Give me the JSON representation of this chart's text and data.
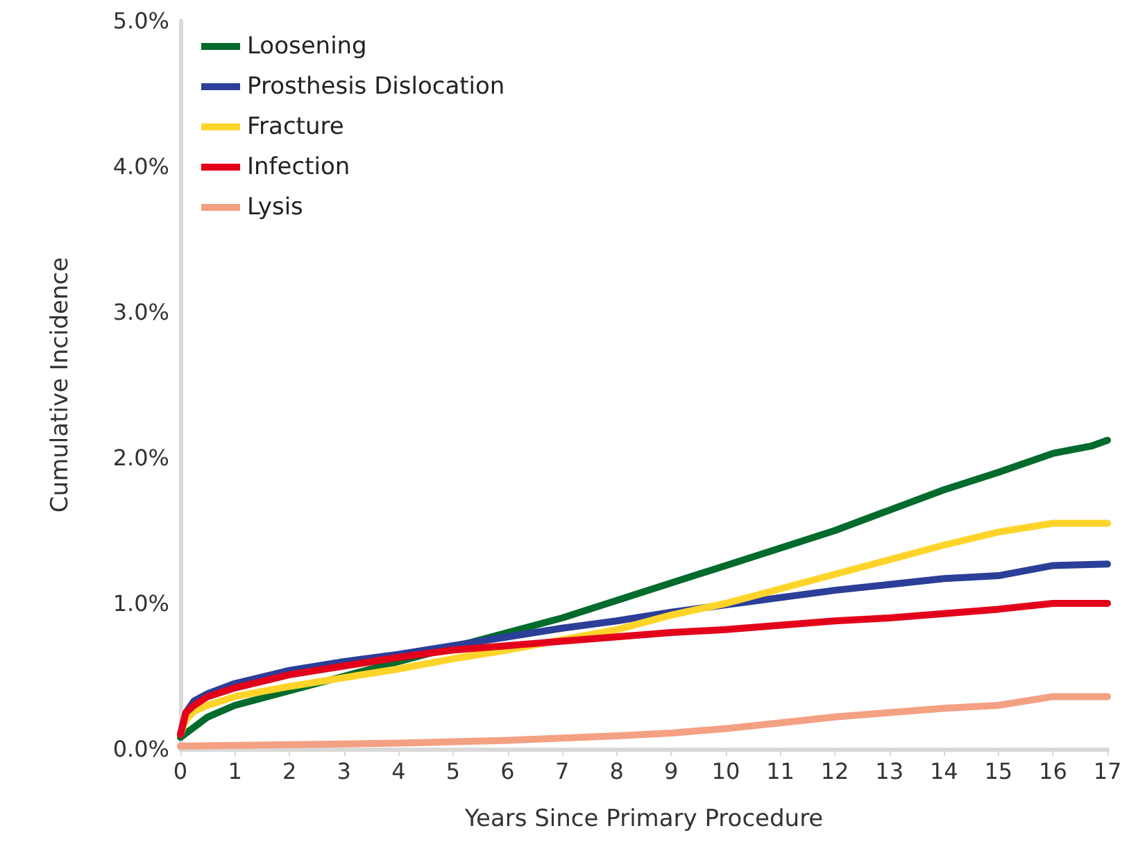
{
  "chart_data": {
    "type": "line",
    "xlabel": "Years Since Primary Procedure",
    "ylabel": "Cumulative Incidence",
    "xlim": [
      0,
      17
    ],
    "xticks": [
      0,
      1,
      2,
      3,
      4,
      5,
      6,
      7,
      8,
      9,
      10,
      11,
      12,
      13,
      14,
      15,
      16,
      17
    ],
    "ylim": [
      0,
      5
    ],
    "yticks": [
      {
        "value": 0,
        "label": "0.0%"
      },
      {
        "value": 1,
        "label": "1.0%"
      },
      {
        "value": 2,
        "label": "2.0%"
      },
      {
        "value": 3,
        "label": "3.0%"
      },
      {
        "value": 4,
        "label": "4.0%"
      },
      {
        "value": 5,
        "label": "5.0%"
      }
    ],
    "grid": false,
    "legend": "top left",
    "marker": "none",
    "line_style": "solid",
    "series": [
      {
        "name": "Loosening",
        "color": "#006b2d",
        "x": [
          0,
          0.5,
          1,
          2,
          3,
          4,
          5,
          6,
          7,
          8,
          9,
          10,
          11,
          12,
          13,
          14,
          15,
          16,
          16.7,
          17
        ],
        "values": [
          0.08,
          0.22,
          0.3,
          0.4,
          0.5,
          0.6,
          0.7,
          0.8,
          0.9,
          1.02,
          1.14,
          1.26,
          1.38,
          1.5,
          1.64,
          1.78,
          1.9,
          2.03,
          2.08,
          2.12
        ]
      },
      {
        "name": "Prosthesis Dislocation",
        "color": "#2b3e98",
        "x": [
          0,
          0.1,
          0.25,
          0.5,
          1,
          2,
          3,
          4,
          5,
          6,
          7,
          8,
          9,
          10,
          11,
          12,
          13,
          14,
          15,
          16,
          17
        ],
        "values": [
          0.1,
          0.25,
          0.33,
          0.38,
          0.45,
          0.54,
          0.6,
          0.65,
          0.71,
          0.77,
          0.83,
          0.88,
          0.94,
          0.99,
          1.04,
          1.09,
          1.13,
          1.17,
          1.19,
          1.26,
          1.27
        ]
      },
      {
        "name": "Fracture",
        "color": "#ffd42a",
        "x": [
          0,
          0.1,
          0.25,
          0.5,
          1,
          2,
          3,
          4,
          5,
          6,
          7,
          8,
          9,
          10,
          11,
          12,
          13,
          14,
          15,
          16,
          17
        ],
        "values": [
          0.1,
          0.2,
          0.26,
          0.3,
          0.36,
          0.43,
          0.49,
          0.55,
          0.62,
          0.68,
          0.75,
          0.82,
          0.92,
          1.0,
          1.1,
          1.2,
          1.3,
          1.4,
          1.49,
          1.55,
          1.55
        ]
      },
      {
        "name": "Infection",
        "color": "#e3001b",
        "x": [
          0,
          0.1,
          0.25,
          0.5,
          1,
          2,
          3,
          4,
          5,
          6,
          7,
          8,
          9,
          10,
          11,
          12,
          13,
          14,
          15,
          16,
          17
        ],
        "values": [
          0.1,
          0.25,
          0.3,
          0.36,
          0.42,
          0.51,
          0.57,
          0.63,
          0.68,
          0.71,
          0.74,
          0.77,
          0.8,
          0.82,
          0.85,
          0.88,
          0.9,
          0.93,
          0.96,
          1.0,
          1.0
        ]
      },
      {
        "name": "Lysis",
        "color": "#f4a083",
        "x": [
          0,
          2,
          4,
          6,
          8,
          9,
          10,
          11,
          12,
          13,
          14,
          15,
          16,
          17
        ],
        "values": [
          0.02,
          0.03,
          0.04,
          0.06,
          0.09,
          0.11,
          0.14,
          0.18,
          0.22,
          0.25,
          0.28,
          0.3,
          0.36,
          0.36
        ]
      }
    ]
  }
}
